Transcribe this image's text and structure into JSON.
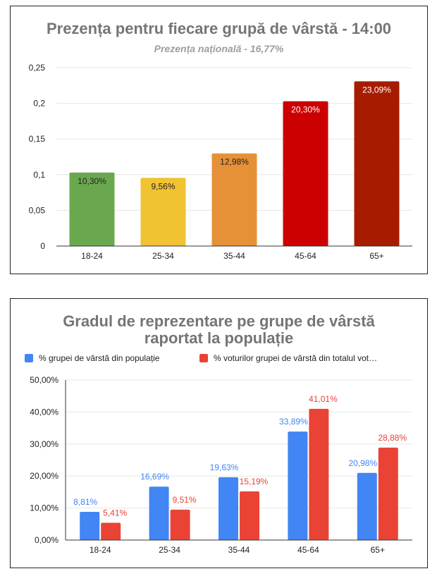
{
  "chart_data": [
    {
      "type": "bar",
      "title": "Prezența pentru fiecare grupă de vârstă - 14:00",
      "subtitle": "Prezența națională - 16,77%",
      "categories": [
        "18-24",
        "25-34",
        "35-44",
        "45-64",
        "65+"
      ],
      "values": [
        0.103,
        0.0956,
        0.1298,
        0.203,
        0.2309
      ],
      "data_labels": [
        "10,30%",
        "9,56%",
        "12,98%",
        "20,30%",
        "23,09%"
      ],
      "bar_colors": [
        "#6aa84f",
        "#f1c232",
        "#e69138",
        "#cc0000",
        "#a61c00"
      ],
      "label_colors": [
        "#222222",
        "#222222",
        "#222222",
        "#ffffff",
        "#ffffff"
      ],
      "ylim": [
        0,
        0.25
      ],
      "yticks": [
        0,
        0.05,
        0.1,
        0.15,
        0.2,
        0.25
      ],
      "ytick_labels": [
        "0",
        "0,05",
        "0,1",
        "0,15",
        "0,2",
        "0,25"
      ],
      "grid": true,
      "xlabel": "",
      "ylabel": ""
    },
    {
      "type": "bar",
      "title_lines": [
        "Gradul de reprezentare pe grupe de vârstă",
        "raportat la populație"
      ],
      "categories": [
        "18-24",
        "25-34",
        "35-44",
        "45-64",
        "65+"
      ],
      "series": [
        {
          "name": "% grupei de vârstă din populație",
          "color": "#4285f4",
          "values": [
            8.81,
            16.69,
            19.63,
            33.89,
            20.98
          ],
          "labels": [
            "8,81%",
            "16,69%",
            "19,63%",
            "33,89%",
            "20,98%"
          ]
        },
        {
          "name": "% voturilor grupei de vârstă din totalul vot…",
          "color": "#ea4335",
          "values": [
            5.41,
            9.51,
            15.19,
            41.01,
            28.88
          ],
          "labels": [
            "5,41%",
            "9,51%",
            "15,19%",
            "41,01%",
            "28,88%"
          ]
        }
      ],
      "ylim": [
        0,
        50
      ],
      "yticks": [
        0,
        10,
        20,
        30,
        40,
        50
      ],
      "ytick_labels": [
        "0,00%",
        "10,00%",
        "20,00%",
        "30,00%",
        "40,00%",
        "50,00%"
      ],
      "legend_position": "top",
      "grid": true,
      "xlabel": "",
      "ylabel": ""
    }
  ]
}
